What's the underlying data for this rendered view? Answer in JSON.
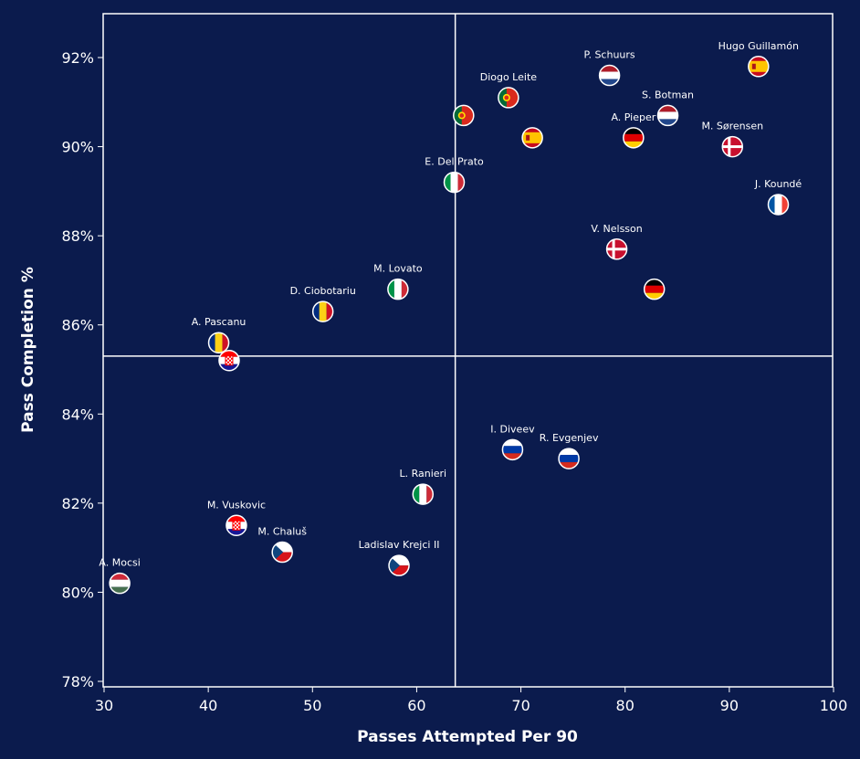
{
  "chart_data": {
    "type": "scatter",
    "title": "",
    "xlabel": "Passes Attempted Per 90",
    "ylabel": "Pass Completion %",
    "xlim": [
      30,
      100
    ],
    "ylim": [
      78,
      93
    ],
    "x_ticks": [
      30,
      40,
      50,
      60,
      70,
      80,
      90,
      100
    ],
    "y_ticks": [
      78,
      80,
      82,
      84,
      86,
      88,
      90,
      92
    ],
    "y_tick_suffix": "%",
    "reference_lines": {
      "x": 63.7,
      "y": 85.3
    },
    "grid": false,
    "points": [
      {
        "label": "Hugo Guillamón",
        "x": 92.8,
        "y": 91.8,
        "flag": "spain"
      },
      {
        "label": "P. Schuurs",
        "x": 78.5,
        "y": 91.6,
        "flag": "netherlands"
      },
      {
        "label": "Diogo Leite",
        "x": 68.8,
        "y": 91.1,
        "flag": "portugal"
      },
      {
        "label": "",
        "x": 64.5,
        "y": 90.7,
        "flag": "portugal"
      },
      {
        "label": "S. Botman",
        "x": 84.1,
        "y": 90.7,
        "flag": "netherlands"
      },
      {
        "label": "A. Pieper",
        "x": 80.8,
        "y": 90.2,
        "flag": "germany"
      },
      {
        "label": "",
        "x": 71.1,
        "y": 90.2,
        "flag": "spain"
      },
      {
        "label": "M. Sørensen",
        "x": 90.3,
        "y": 90.0,
        "flag": "denmark"
      },
      {
        "label": "E. Del Prato",
        "x": 63.6,
        "y": 89.2,
        "flag": "italy"
      },
      {
        "label": "J. Koundé",
        "x": 94.7,
        "y": 88.7,
        "flag": "france"
      },
      {
        "label": "V. Nelsson",
        "x": 79.2,
        "y": 87.7,
        "flag": "denmark"
      },
      {
        "label": "",
        "x": 82.8,
        "y": 86.8,
        "flag": "germany"
      },
      {
        "label": "M. Lovato",
        "x": 58.2,
        "y": 86.8,
        "flag": "italy"
      },
      {
        "label": "D. Ciobotariu",
        "x": 51.0,
        "y": 86.3,
        "flag": "romania"
      },
      {
        "label": "A. Pascanu",
        "x": 41.0,
        "y": 85.6,
        "flag": "romania"
      },
      {
        "label": "",
        "x": 42.0,
        "y": 85.2,
        "flag": "croatia"
      },
      {
        "label": "I. Diveev",
        "x": 69.2,
        "y": 83.2,
        "flag": "russia"
      },
      {
        "label": "R. Evgenjev",
        "x": 74.6,
        "y": 83.0,
        "flag": "russia"
      },
      {
        "label": "L. Ranieri",
        "x": 60.6,
        "y": 82.2,
        "flag": "italy"
      },
      {
        "label": "M. Vuskovic",
        "x": 42.7,
        "y": 81.5,
        "flag": "croatia"
      },
      {
        "label": "M. Chaluš",
        "x": 47.1,
        "y": 80.9,
        "flag": "czech"
      },
      {
        "label": "Ladislav Krejci II",
        "x": 58.3,
        "y": 80.6,
        "flag": "czech"
      },
      {
        "label": "A. Mocsi",
        "x": 31.5,
        "y": 80.2,
        "flag": "hungary"
      }
    ]
  },
  "colors": {
    "background": "#0b1b4d",
    "axis": "#ffffff",
    "text": "#ffffff"
  }
}
